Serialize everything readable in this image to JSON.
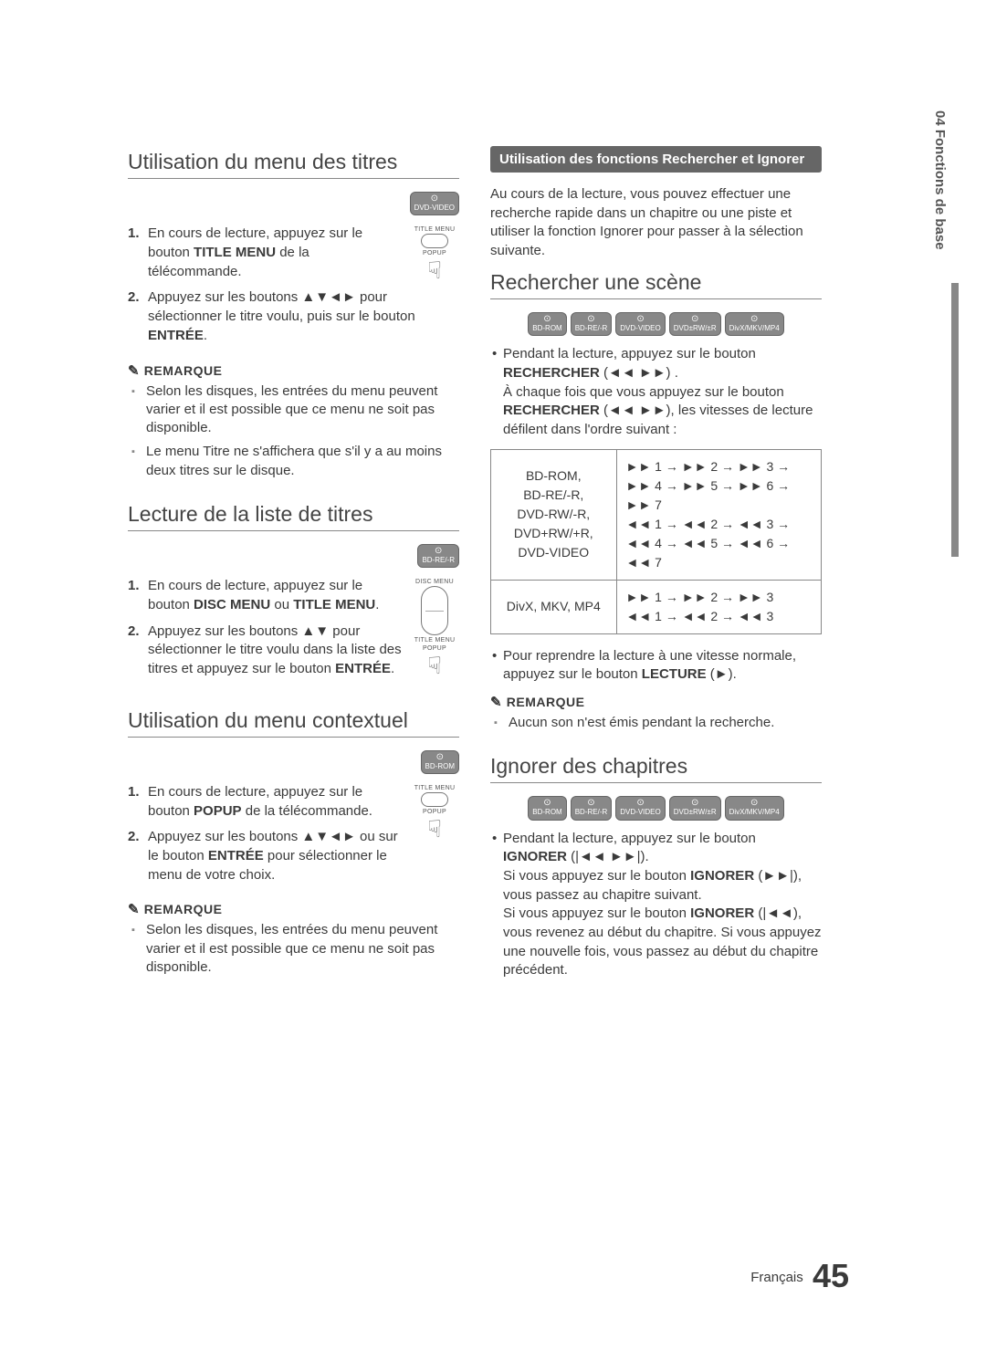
{
  "side_tab": "04  Fonctions de base",
  "footer": {
    "lang": "Français",
    "page": "45"
  },
  "left": {
    "s1": {
      "title": "Utilisation du menu des titres",
      "badge": "DVD-VIDEO",
      "remote": {
        "l1": "TITLE MENU",
        "l2": "POPUP"
      },
      "step1_a": "En cours de lecture, appuyez sur le bouton ",
      "step1_b": "TITLE MENU",
      "step1_c": " de la télécommande.",
      "step2_a": "Appuyez sur les boutons ▲▼◄► pour sélectionner le titre voulu, puis sur le bouton ",
      "step2_b": "ENTRÉE",
      "step2_c": ".",
      "note_head": "REMARQUE",
      "note1": "Selon les disques, les entrées du menu peuvent varier et il est possible que ce menu ne soit pas disponible.",
      "note2": "Le menu Titre ne s'affichera que s'il y a au moins deux titres sur le disque."
    },
    "s2": {
      "title": "Lecture de la liste de titres",
      "badge": "BD-RE/-R",
      "remote": {
        "l0": "DISC MENU",
        "l1": "TITLE MENU",
        "l2": "POPUP"
      },
      "step1_a": "En cours de lecture, appuyez sur le bouton  ",
      "step1_b": "DISC MENU",
      "step1_c": " ou ",
      "step1_d": "TITLE MENU",
      "step1_e": ".",
      "step2_a": "Appuyez sur les boutons ▲▼ pour sélectionner le titre voulu dans la liste des titres et appuyez sur le bouton ",
      "step2_b": "ENTRÉE",
      "step2_c": "."
    },
    "s3": {
      "title": "Utilisation du menu contextuel",
      "badge": "BD-ROM",
      "remote": {
        "l1": "TITLE MENU",
        "l2": "POPUP"
      },
      "step1_a": "En cours de lecture, appuyez sur le bouton ",
      "step1_b": "POPUP",
      "step1_c": " de la télécommande.",
      "step2_a": "Appuyez sur les boutons ▲▼◄► ou sur le bouton ",
      "step2_b": "ENTRÉE",
      "step2_c": " pour sélectionner le menu de votre choix.",
      "note_head": "REMARQUE",
      "note1": "Selon les disques, les entrées du menu peuvent varier et il est possible que ce menu ne soit pas disponible."
    }
  },
  "right": {
    "bar_title": "Utilisation des fonctions Rechercher et Ignorer",
    "intro": "Au cours de la lecture, vous pouvez effectuer une recherche rapide dans un chapitre ou une piste et utiliser la fonction Ignorer pour passer à la sélection suivante.",
    "s1": {
      "title": "Rechercher une scène",
      "badges": [
        "BD-ROM",
        "BD-RE/-R",
        "DVD-VIDEO",
        "DVD±RW/±R",
        "DivX/MKV/MP4"
      ],
      "b1_a": "Pendant la lecture, appuyez sur le bouton ",
      "b1_b": "RECHERCHER",
      "b1_c": " (◄◄ ►►) .",
      "b1_d": "À chaque fois que vous appuyez sur le bouton ",
      "b1_e": "RECHERCHER",
      "b1_f": " (◄◄ ►►), les vitesses de lecture défilent dans l'ordre suivant :",
      "tbl": {
        "r1l": "BD-ROM,\nBD-RE/-R,\nDVD-RW/-R,\nDVD+RW/+R,\nDVD-VIDEO",
        "r1r": "►► 1 → ►► 2 → ►► 3 →\n►► 4 → ►► 5 → ►► 6 → ►► 7\n◄◄ 1 → ◄◄ 2 → ◄◄ 3 →\n◄◄ 4 → ◄◄ 5 → ◄◄ 6 → ◄◄ 7",
        "r2l": "DivX, MKV, MP4",
        "r2r": "►► 1 → ►► 2 → ►► 3\n◄◄ 1 → ◄◄ 2 → ◄◄ 3"
      },
      "b2_a": "Pour reprendre la lecture à une vitesse normale, appuyez sur le bouton ",
      "b2_b": "LECTURE",
      "b2_c": " (►).",
      "note_head": "REMARQUE",
      "note1": "Aucun son n'est émis pendant la recherche."
    },
    "s2": {
      "title": "Ignorer des chapitres",
      "badges": [
        "BD-ROM",
        "BD-RE/-R",
        "DVD-VIDEO",
        "DVD±RW/±R",
        "DivX/MKV/MP4"
      ],
      "b1_a": "Pendant la lecture, appuyez sur le bouton ",
      "b1_b": "IGNORER",
      "b1_c": " (|◄◄ ►►|).",
      "b1_d": "Si vous appuyez sur le bouton ",
      "b1_e": "IGNORER",
      "b1_f": " (►►|), vous passez au chapitre suivant.",
      "b1_g": "Si vous appuyez sur le bouton ",
      "b1_h": "IGNORER",
      "b1_i": " (|◄◄), vous revenez au début du chapitre. Si vous appuyez une nouvelle fois, vous passez au début du chapitre précédent."
    }
  }
}
